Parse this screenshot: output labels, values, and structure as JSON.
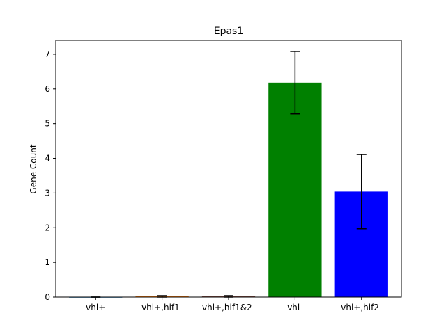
{
  "chart_data": {
    "type": "bar",
    "title": "Epas1",
    "xlabel": "",
    "ylabel": "Gene Count",
    "categories": [
      "vhl+",
      "vhl+,hif1-",
      "vhl+,hif1&2-",
      "vhl-",
      "vhl+,hif2-"
    ],
    "values": [
      0.0,
      0.02,
      0.02,
      6.18,
      3.04
    ],
    "errors": [
      0.0,
      0.02,
      0.02,
      0.9,
      1.07
    ],
    "colors": [
      "#1f77b4",
      "#ff7f0e",
      "#8c564b",
      "#008000",
      "#0000ff"
    ],
    "ylim": [
      0,
      7.4
    ],
    "yticks": [
      0,
      1,
      2,
      3,
      4,
      5,
      6,
      7
    ],
    "grid": false,
    "legend": "none"
  }
}
